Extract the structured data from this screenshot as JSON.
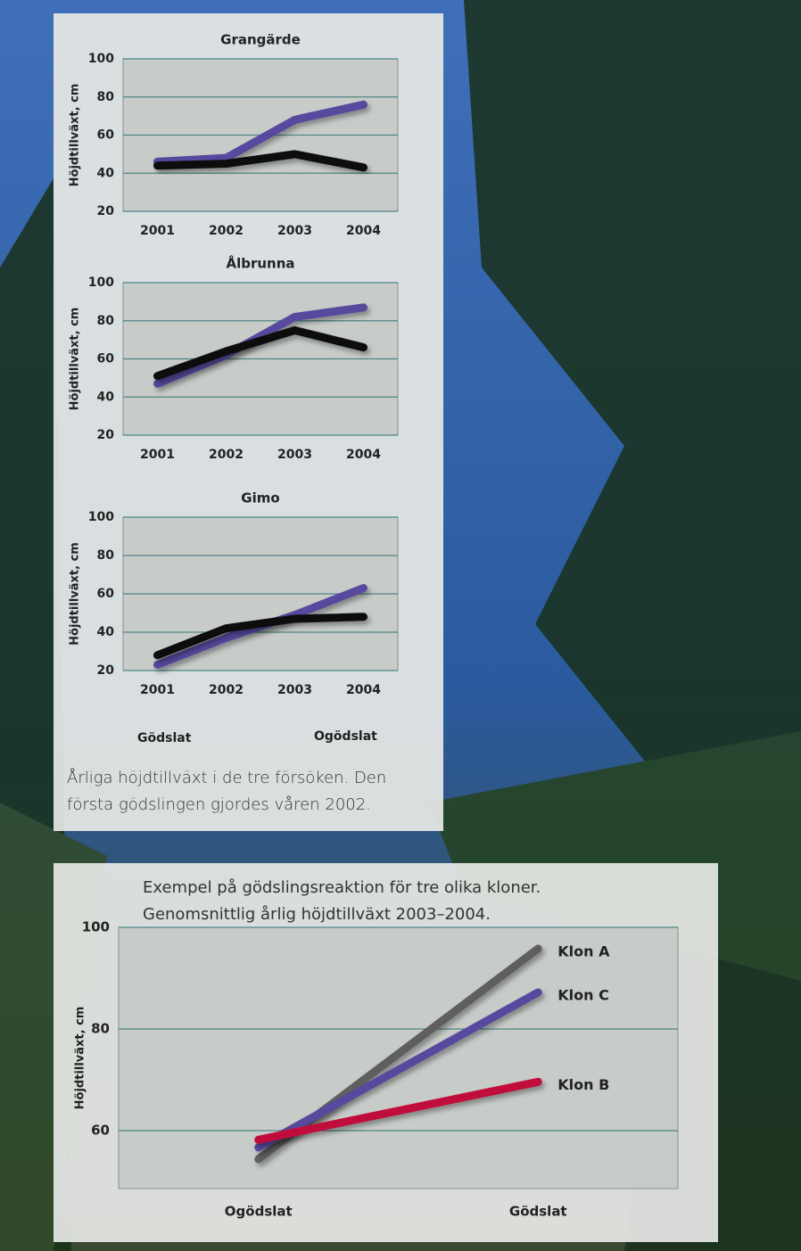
{
  "chart_data": [
    {
      "type": "line",
      "title": "Grangärde",
      "y_label": "Höjdtillväxt, cm",
      "categories": [
        "2001",
        "2002",
        "2003",
        "2004"
      ],
      "series": [
        {
          "name": "Gödslat",
          "color": "#564a9e",
          "values": [
            46,
            48,
            68,
            76
          ]
        },
        {
          "name": "Ogödslat",
          "color": "#111111",
          "values": [
            44,
            45,
            50,
            43
          ]
        }
      ],
      "ylim": [
        20,
        100
      ],
      "yticks": [
        20,
        40,
        60,
        80,
        100
      ],
      "grid": true
    },
    {
      "type": "line",
      "title": "Ålbrunna",
      "y_label": "Höjdtillväxt, cm",
      "categories": [
        "2001",
        "2002",
        "2003",
        "2004"
      ],
      "series": [
        {
          "name": "Gödslat",
          "color": "#564a9e",
          "values": [
            47,
            62,
            82,
            87
          ]
        },
        {
          "name": "Ogödslat",
          "color": "#111111",
          "values": [
            51,
            64,
            75,
            66
          ]
        }
      ],
      "ylim": [
        20,
        100
      ],
      "yticks": [
        20,
        40,
        60,
        80,
        100
      ],
      "grid": true
    },
    {
      "type": "line",
      "title": "Gimo",
      "y_label": "Höjdtillväxt, cm",
      "categories": [
        "2001",
        "2002",
        "2003",
        "2004"
      ],
      "series": [
        {
          "name": "Gödslat",
          "color": "#564a9e",
          "values": [
            23,
            37,
            49,
            63
          ]
        },
        {
          "name": "Ogödslat",
          "color": "#111111",
          "values": [
            28,
            42,
            47,
            48
          ]
        }
      ],
      "ylim": [
        20,
        100
      ],
      "yticks": [
        20,
        40,
        60,
        80,
        100
      ],
      "grid": true
    },
    {
      "type": "line",
      "title": "Exempel på gödslingsreaktion för tre olika kloner.",
      "subtitle": "Genomsnittlig årlig höjdtillväxt 2003–2004.",
      "y_label": "Höjdtillväxt, cm",
      "categories": [
        "Ogödslat",
        "Gödslat"
      ],
      "series": [
        {
          "name": "Klon A",
          "color": "#5e5e5e",
          "values": [
            54.4,
            95.8
          ]
        },
        {
          "name": "Klon C",
          "color": "#564a9e",
          "values": [
            56.7,
            87.2
          ]
        },
        {
          "name": "Klon B",
          "color": "#c0103a",
          "values": [
            58.2,
            69.6
          ]
        }
      ],
      "ylim": [
        48.6,
        100
      ],
      "yticks": [
        60,
        80,
        100
      ],
      "grid": true
    }
  ],
  "caption": "Årliga höjdtillväxt i de tre försöken. Den första gödslingen gjordes våren 2002."
}
